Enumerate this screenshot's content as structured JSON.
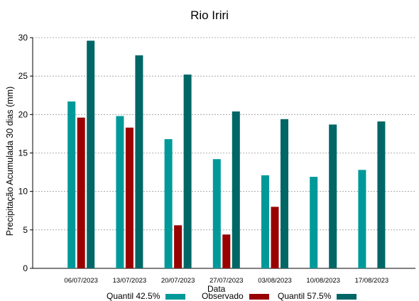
{
  "chart_data": {
    "type": "bar",
    "title": "Rio Iriri",
    "xlabel": "Data",
    "ylabel": "Precipitação Acumulada 30 dias (mm)",
    "ylim": [
      0,
      30
    ],
    "yticks": [
      "0",
      "5",
      "10",
      "15",
      "20",
      "25",
      "30"
    ],
    "grid": true,
    "legend_position": "bottom",
    "categories": [
      "06/07/2023",
      "13/07/2023",
      "20/07/2023",
      "27/07/2023",
      "03/08/2023",
      "10/08/2023",
      "17/08/2023"
    ],
    "series": [
      {
        "name": "Quantil 42.5%",
        "color": "#009999",
        "values": [
          21.7,
          19.8,
          16.8,
          14.2,
          12.1,
          11.9,
          12.8
        ]
      },
      {
        "name": "Observado",
        "color": "#990000",
        "values": [
          19.6,
          18.3,
          5.6,
          4.4,
          8.0,
          null,
          null
        ]
      },
      {
        "name": "Quantil 57.5%",
        "color": "#006666",
        "values": [
          29.6,
          27.7,
          25.2,
          20.4,
          19.4,
          18.7,
          19.1
        ]
      }
    ]
  }
}
